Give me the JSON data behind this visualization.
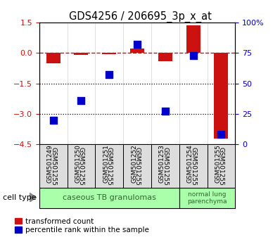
{
  "title": "GDS4256 / 206695_3p_x_at",
  "samples": [
    "GSM501249",
    "GSM501250",
    "GSM501251",
    "GSM501252",
    "GSM501253",
    "GSM501254",
    "GSM501255"
  ],
  "red_bars": [
    -0.5,
    -0.1,
    -0.05,
    0.22,
    -0.4,
    1.35,
    -4.2
  ],
  "blue_pct": [
    20,
    36,
    57,
    82,
    27,
    73,
    8
  ],
  "ymin": -4.5,
  "ymax": 1.5,
  "yticks_left": [
    1.5,
    0.0,
    -1.5,
    -3.0,
    -4.5
  ],
  "yticks_right_pct": [
    100,
    75,
    50,
    25,
    0
  ],
  "hlines": [
    -1.5,
    -3.0
  ],
  "bar_color": "#cc1111",
  "dot_color": "#0000cc",
  "bar_width": 0.5,
  "dot_size": 55,
  "bg_color": "#ffffff",
  "zero_line_color": "#cc1111",
  "hline_color": "#000000",
  "legend_red": "transformed count",
  "legend_blue": "percentile rank within the sample",
  "ylabel_left_color": "#cc1111",
  "ylabel_right_color": "#0000cc",
  "grp1_count": 5,
  "grp1_label": "caseous TB granulomas",
  "grp2_label": "normal lung\nparenchyma",
  "grp_color": "#aaffaa",
  "grp_text_color": "#336633"
}
